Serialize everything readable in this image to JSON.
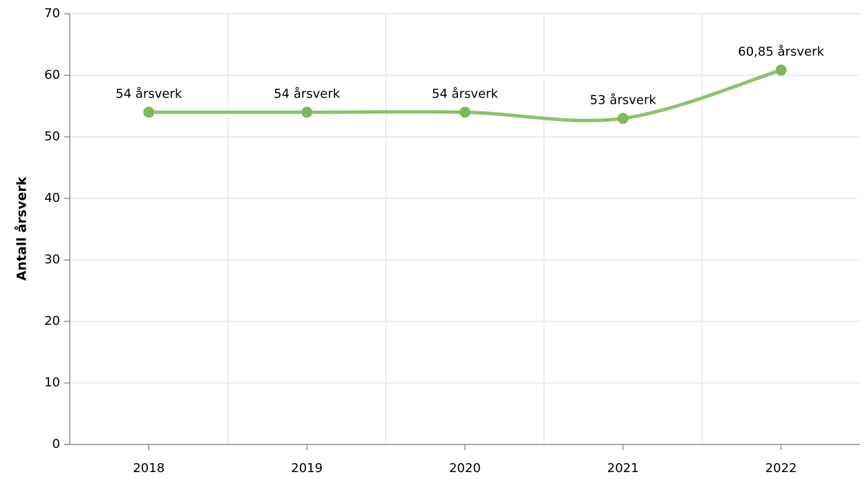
{
  "chart_data": {
    "type": "line",
    "categories": [
      "2018",
      "2019",
      "2020",
      "2021",
      "2022"
    ],
    "series": [
      {
        "name": "Antall årsverk",
        "color": "#8dc26f",
        "values": [
          54,
          54,
          54,
          53,
          60.85
        ],
        "value_labels": [
          "54 årsverk",
          "54 årsverk",
          "54 årsverk",
          "53 årsverk",
          "60,85 årsverk"
        ]
      }
    ],
    "ylabel": "Antall årsverk",
    "ylim": [
      0,
      70
    ],
    "yticks": [
      0,
      10,
      20,
      30,
      40,
      50,
      60,
      70
    ],
    "grid": true
  }
}
